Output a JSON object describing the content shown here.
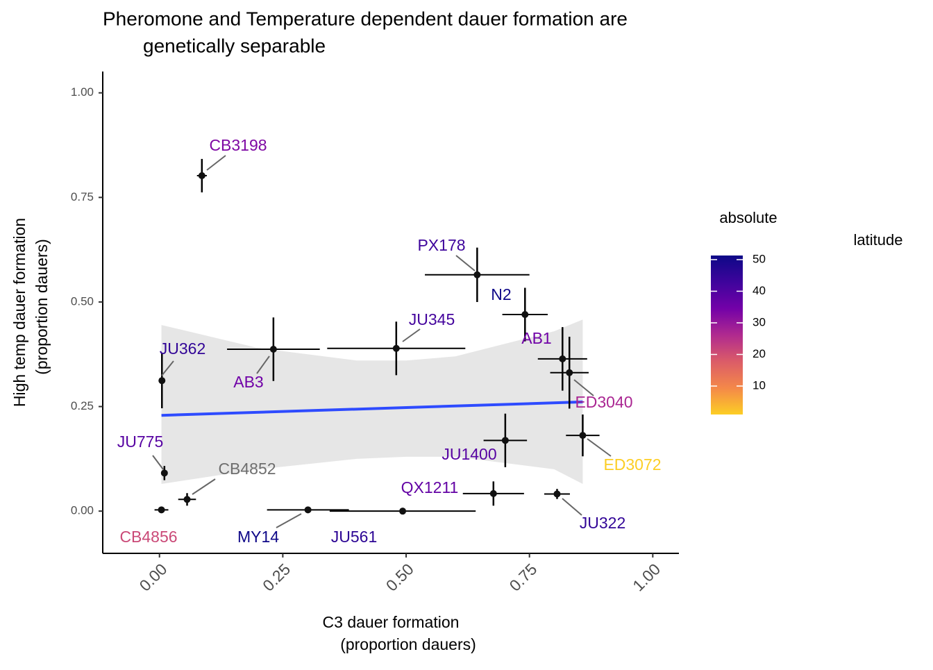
{
  "chart_data": {
    "type": "scatter",
    "title": [
      "Pheromone and Temperature dependent dauer formation are",
      "genetically separable"
    ],
    "x_label": [
      "C3 dauer formation",
      "(proportion dauers)"
    ],
    "y_label": [
      "High temp dauer formation",
      "(proportion dauers)"
    ],
    "legend_title": [
      "absolute",
      "latitude"
    ],
    "xlim": [
      -0.115,
      1.053
    ],
    "ylim": [
      -0.101,
      1.051
    ],
    "xticks": [
      {
        "value": 0,
        "label": "0.00"
      },
      {
        "value": 0.25,
        "label": "0.25"
      },
      {
        "value": 0.5,
        "label": "0.50"
      },
      {
        "value": 0.75,
        "label": "0.75"
      },
      {
        "value": 1,
        "label": "1.00"
      }
    ],
    "yticks": [
      {
        "value": 0,
        "label": "0.00"
      },
      {
        "value": 0.25,
        "label": "0.25"
      },
      {
        "value": 0.5,
        "label": "0.50"
      },
      {
        "value": 0.75,
        "label": "0.75"
      },
      {
        "value": 1,
        "label": "1.00"
      }
    ],
    "colorscale": [
      "#fcce25",
      "#f48849",
      "#db5c68",
      "#b02a8f",
      "#7301a8",
      "#3e049c",
      "#0d0887"
    ],
    "na_color": "#6e6e6e",
    "clim": [
      1,
      51.3
    ],
    "cticks": [
      10,
      20,
      30,
      40,
      50
    ],
    "point_color": "#111111",
    "fit": {
      "color": "#2e4bff",
      "x": [
        0.004,
        0.858
      ],
      "y": [
        0.229,
        0.261
      ]
    },
    "band": {
      "color": "#e6e6e6",
      "x": [
        0.004,
        0.2,
        0.4,
        0.5,
        0.6,
        0.8,
        0.858
      ],
      "upper": [
        0.445,
        0.39,
        0.36,
        0.36,
        0.37,
        0.43,
        0.458
      ],
      "lower": [
        0.065,
        0.1,
        0.125,
        0.13,
        0.13,
        0.1,
        0.065
      ]
    },
    "points": [
      {
        "label": "CB3198",
        "x": 0.086,
        "y": 0.802,
        "xerr": 0.01,
        "yerr": 0.04,
        "latitude": 33
      },
      {
        "label": "PX178",
        "x": 0.644,
        "y": 0.565,
        "xerr": 0.106,
        "yerr": 0.065,
        "latitude": 43
      },
      {
        "label": "N2",
        "x": 0.741,
        "y": 0.47,
        "xerr": 0.046,
        "yerr": 0.064,
        "latitude": 51
      },
      {
        "label": "JU345",
        "x": 0.48,
        "y": 0.389,
        "xerr": 0.14,
        "yerr": 0.064,
        "latitude": 42
      },
      {
        "label": "AB3",
        "x": 0.231,
        "y": 0.387,
        "xerr": 0.094,
        "yerr": 0.076,
        "latitude": 35
      },
      {
        "label": "JU362",
        "x": 0.005,
        "y": 0.312,
        "xerr": 0.004,
        "yerr": 0.066,
        "latitude": 45
      },
      {
        "label": "AB1",
        "x": 0.817,
        "y": 0.364,
        "xerr": 0.05,
        "yerr": 0.076,
        "latitude": 35
      },
      {
        "label": "ED3040",
        "x": 0.831,
        "y": 0.331,
        "xerr": 0.039,
        "yerr": 0.086,
        "latitude": 27
      },
      {
        "label": "ED3072",
        "x": 0.858,
        "y": 0.181,
        "xerr": 0.034,
        "yerr": 0.05,
        "latitude": 1
      },
      {
        "label": "JU1400",
        "x": 0.701,
        "y": 0.169,
        "xerr": 0.044,
        "yerr": 0.064,
        "latitude": 39
      },
      {
        "label": "JU775",
        "x": 0.01,
        "y": 0.091,
        "xerr": 0.005,
        "yerr": 0.017,
        "latitude": 39
      },
      {
        "label": "CB4852",
        "x": 0.056,
        "y": 0.028,
        "xerr": 0.018,
        "yerr": 0.015,
        "latitude": null
      },
      {
        "label": "CB4856",
        "x": 0.004,
        "y": 0.003,
        "xerr": 0.014,
        "yerr": 0.003,
        "latitude": 21
      },
      {
        "label": "MY14",
        "x": 0.301,
        "y": 0.003,
        "xerr": 0.083,
        "yerr": 0.003,
        "latitude": 51
      },
      {
        "label": "JU561",
        "x": 0.493,
        "y": 0.0,
        "xerr": 0.148,
        "yerr": 0.002,
        "latitude": 46
      },
      {
        "label": "QX1211",
        "x": 0.677,
        "y": 0.042,
        "xerr": 0.062,
        "yerr": 0.029,
        "latitude": 37
      },
      {
        "label": "JU322",
        "x": 0.806,
        "y": 0.041,
        "xerr": 0.026,
        "yerr": 0.012,
        "latitude": 45
      }
    ]
  }
}
